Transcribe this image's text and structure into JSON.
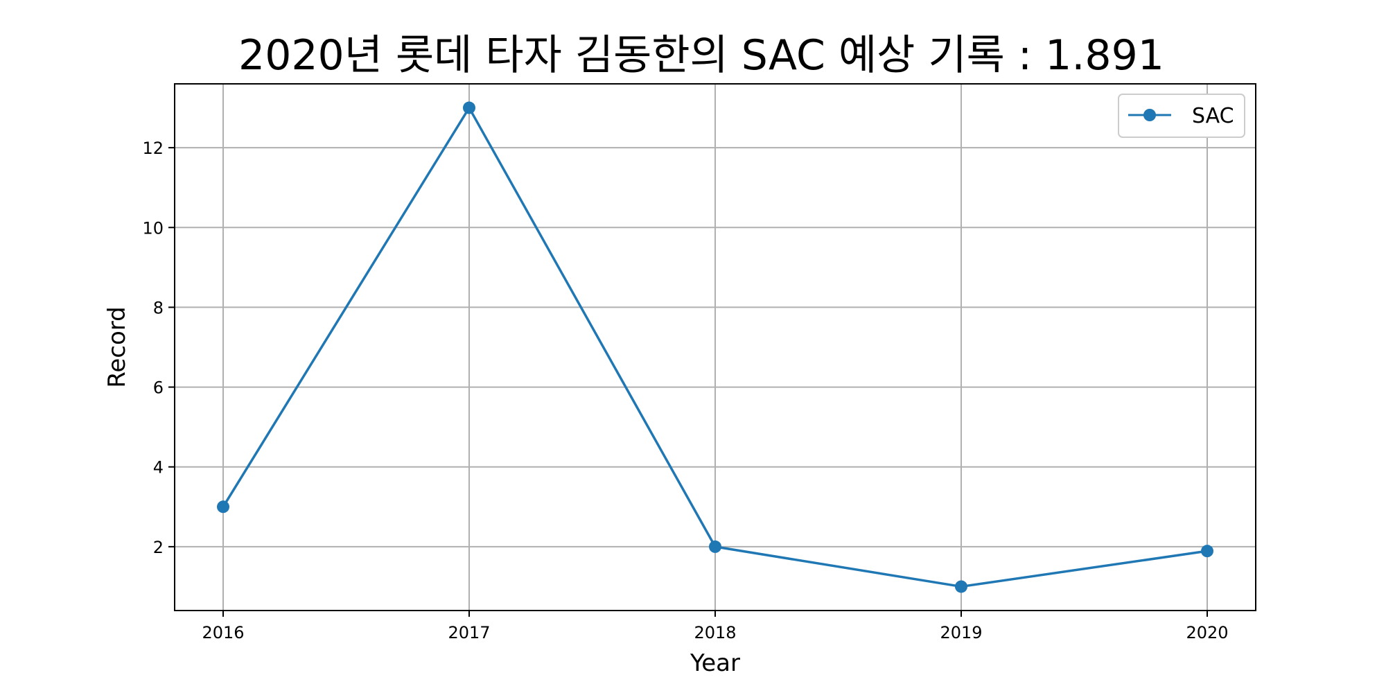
{
  "chart_data": {
    "type": "line",
    "title": "2020년 롯데 타자 김동한의 SAC 예상 기록 : 1.891",
    "xlabel": "Year",
    "ylabel": "Record",
    "categories": [
      "2016",
      "2017",
      "2018",
      "2019",
      "2020"
    ],
    "series": [
      {
        "name": "SAC",
        "values": [
          3,
          13,
          2,
          1,
          1.891
        ],
        "color": "#1f77b4"
      }
    ],
    "yticks": [
      "2",
      "4",
      "6",
      "8",
      "10",
      "12"
    ],
    "ylim": [
      0.4,
      13.6
    ],
    "grid": true,
    "legend": "top-right"
  }
}
